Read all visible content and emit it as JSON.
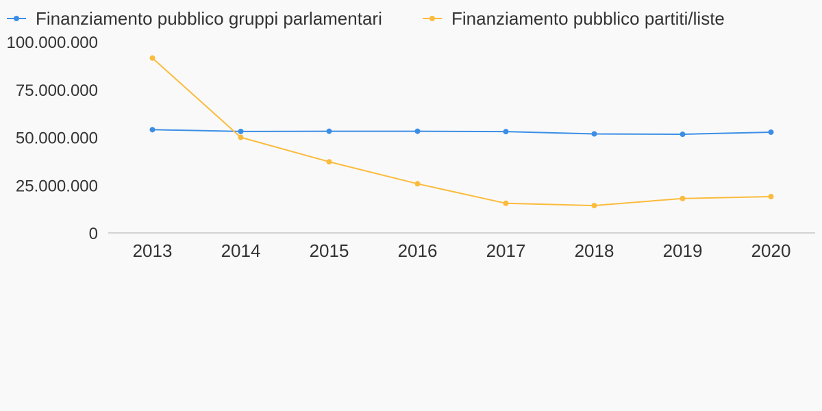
{
  "chart_data": {
    "type": "line",
    "categories": [
      "2013",
      "2014",
      "2015",
      "2016",
      "2017",
      "2018",
      "2019",
      "2020"
    ],
    "series": [
      {
        "name": "Finanziamento pubblico gruppi parlamentari",
        "color": "#3b8ee6",
        "values": [
          54000000,
          53100000,
          53200000,
          53200000,
          53000000,
          51800000,
          51600000,
          52700000
        ]
      },
      {
        "name": "Finanziamento pubblico partiti/liste",
        "color": "#fbbb3c",
        "values": [
          91500000,
          50000000,
          37200000,
          25700000,
          15500000,
          14300000,
          18000000,
          19000000
        ]
      }
    ],
    "yticks": [
      0,
      25000000,
      50000000,
      75000000,
      100000000
    ],
    "ytick_labels": [
      "0",
      "25.000.000",
      "50.000.000",
      "75.000.000",
      "100.000.000"
    ],
    "ylim": [
      0,
      100000000
    ],
    "xlabel": "",
    "ylabel": "",
    "legend_position": "top-left",
    "grid": false
  }
}
